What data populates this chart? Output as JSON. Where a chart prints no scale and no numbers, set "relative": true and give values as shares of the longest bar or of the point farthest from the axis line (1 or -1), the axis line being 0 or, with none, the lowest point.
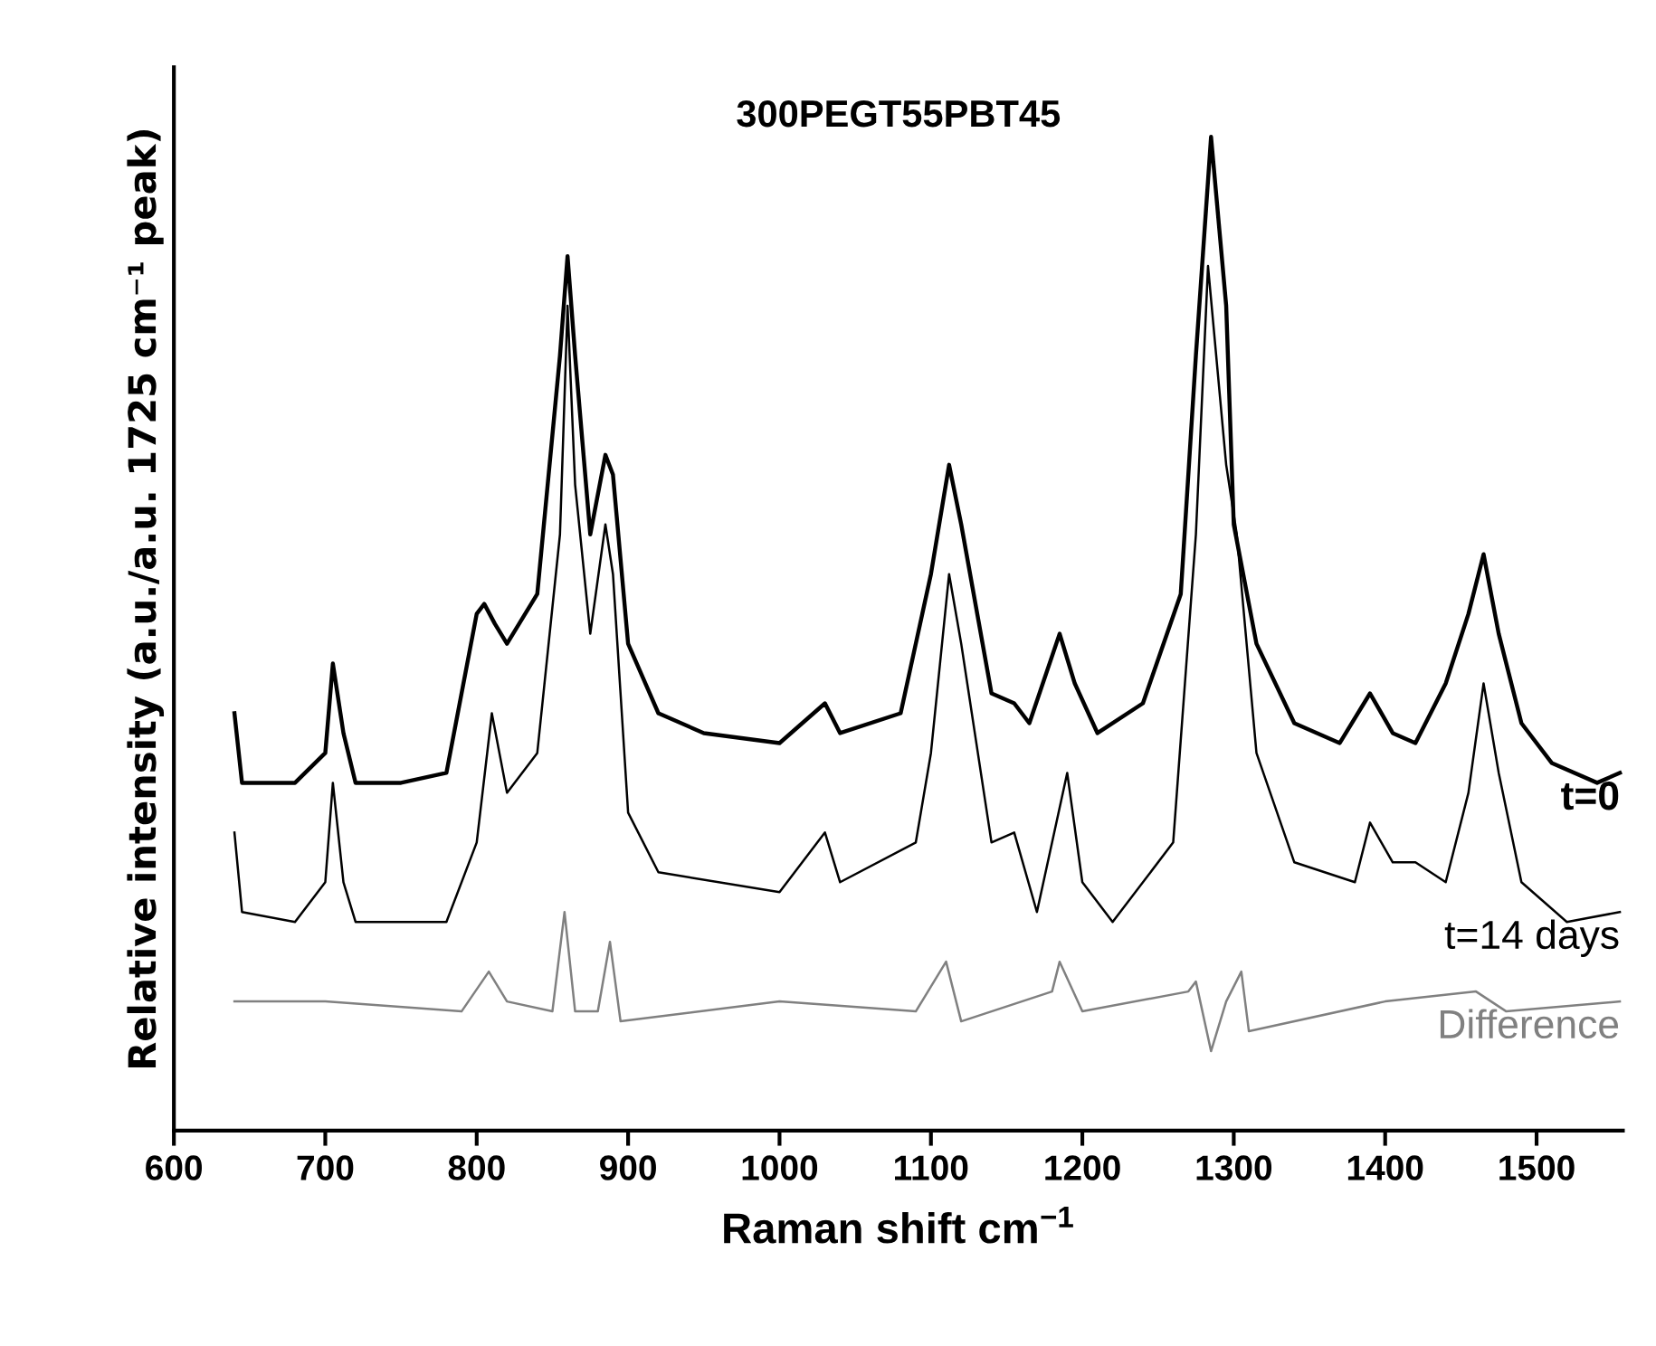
{
  "chart_data": {
    "type": "line",
    "relative": true,
    "title": "300PEGT55PBT45",
    "xlabel": "Raman shift cm$^{−1}$",
    "ylabel": "Relative intensity (a.u./a.u. 1725 cm⁻¹ peak)",
    "xlim": [
      600,
      1557
    ],
    "xticks": [
      600,
      700,
      800,
      900,
      1000,
      1100,
      1200,
      1300,
      1400,
      1500
    ],
    "grid": false,
    "legend": false,
    "marker": "none",
    "line_style": "solid",
    "tick_labels": "x",
    "series": [
      {
        "name": "t=0",
        "color": "#000000",
        "x": [
          640,
          645,
          680,
          700,
          705,
          712,
          720,
          750,
          780,
          800,
          805,
          812,
          820,
          840,
          855,
          860,
          865,
          875,
          885,
          890,
          900,
          920,
          950,
          1000,
          1030,
          1040,
          1080,
          1100,
          1112,
          1120,
          1140,
          1155,
          1165,
          1185,
          1195,
          1210,
          1240,
          1265,
          1275,
          1285,
          1295,
          1300,
          1315,
          1340,
          1370,
          1390,
          1405,
          1420,
          1440,
          1455,
          1465,
          1475,
          1490,
          1510,
          1540,
          1555
        ],
        "values": [
          0.42,
          0.35,
          0.35,
          0.38,
          0.47,
          0.4,
          0.35,
          0.35,
          0.36,
          0.52,
          0.53,
          0.51,
          0.49,
          0.54,
          0.78,
          0.88,
          0.78,
          0.6,
          0.68,
          0.66,
          0.49,
          0.42,
          0.4,
          0.39,
          0.43,
          0.4,
          0.42,
          0.56,
          0.67,
          0.61,
          0.44,
          0.43,
          0.41,
          0.5,
          0.45,
          0.4,
          0.43,
          0.54,
          0.78,
          1.0,
          0.83,
          0.61,
          0.49,
          0.41,
          0.39,
          0.44,
          0.4,
          0.39,
          0.45,
          0.52,
          0.58,
          0.5,
          0.41,
          0.37,
          0.35,
          0.36
        ]
      },
      {
        "name": "t=14 days",
        "color": "#000000",
        "x": [
          640,
          645,
          680,
          700,
          705,
          712,
          720,
          780,
          800,
          810,
          820,
          840,
          855,
          860,
          865,
          875,
          885,
          890,
          900,
          920,
          1000,
          1030,
          1040,
          1090,
          1100,
          1112,
          1120,
          1140,
          1155,
          1170,
          1190,
          1200,
          1220,
          1260,
          1275,
          1283,
          1295,
          1302,
          1315,
          1340,
          1380,
          1390,
          1405,
          1420,
          1440,
          1455,
          1465,
          1475,
          1490,
          1520,
          1555
        ],
        "values": [
          0.3,
          0.22,
          0.21,
          0.25,
          0.35,
          0.25,
          0.21,
          0.21,
          0.29,
          0.42,
          0.34,
          0.38,
          0.6,
          0.83,
          0.65,
          0.5,
          0.61,
          0.56,
          0.32,
          0.26,
          0.24,
          0.3,
          0.25,
          0.29,
          0.38,
          0.56,
          0.49,
          0.29,
          0.3,
          0.22,
          0.36,
          0.25,
          0.21,
          0.29,
          0.6,
          0.87,
          0.67,
          0.6,
          0.38,
          0.27,
          0.25,
          0.31,
          0.27,
          0.27,
          0.25,
          0.34,
          0.45,
          0.36,
          0.25,
          0.21,
          0.22
        ]
      },
      {
        "name": "Difference",
        "color": "#808080",
        "x": [
          640,
          700,
          790,
          808,
          820,
          850,
          858,
          865,
          880,
          888,
          895,
          1000,
          1090,
          1110,
          1120,
          1180,
          1185,
          1200,
          1270,
          1275,
          1285,
          1295,
          1305,
          1310,
          1400,
          1460,
          1480,
          1555
        ],
        "values": [
          0.13,
          0.13,
          0.12,
          0.16,
          0.13,
          0.12,
          0.22,
          0.12,
          0.12,
          0.19,
          0.11,
          0.13,
          0.12,
          0.17,
          0.11,
          0.14,
          0.17,
          0.12,
          0.14,
          0.15,
          0.08,
          0.13,
          0.16,
          0.1,
          0.13,
          0.14,
          0.12,
          0.13
        ]
      }
    ]
  }
}
